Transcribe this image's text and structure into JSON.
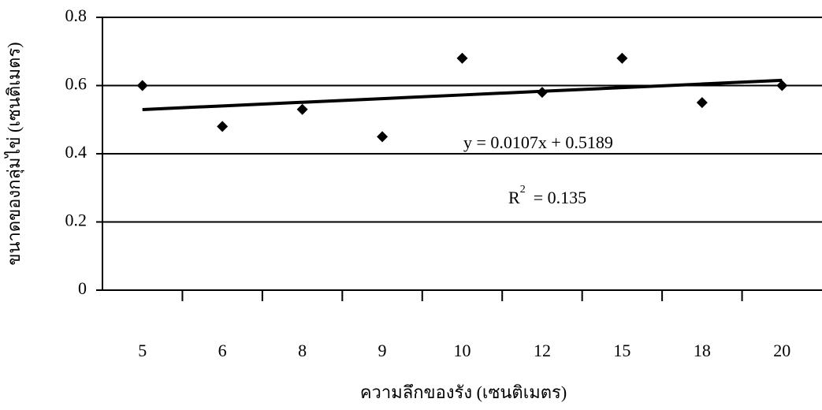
{
  "chart_data": {
    "type": "scatter",
    "x_label": "ความลึกของรัง (เซนติเมตร)",
    "y_label": "ขนาดของกลุ่มไข่ (เซนติเมตร)",
    "categories": [
      "5",
      "6",
      "8",
      "9",
      "10",
      "12",
      "15",
      "18",
      "20"
    ],
    "series": [
      {
        "color": "#000000",
        "values": [
          0.6,
          0.48,
          0.53,
          0.45,
          0.68,
          0.58,
          0.68,
          0.55,
          0.6
        ]
      }
    ],
    "trendline": {
      "color": "#000000",
      "values": [
        0.5296,
        0.5403,
        0.551,
        0.5617,
        0.5724,
        0.5831,
        0.5938,
        0.6045,
        0.6152
      ]
    },
    "equation": "y = 0.0107x + 0.5189",
    "r_squared": {
      "base": "R",
      "exponent": "2",
      "rest": "= 0.135"
    },
    "ylim": [
      0,
      0.8
    ],
    "yticks": [
      0,
      0.2,
      0.4,
      0.6,
      0.8
    ],
    "grid": true
  }
}
